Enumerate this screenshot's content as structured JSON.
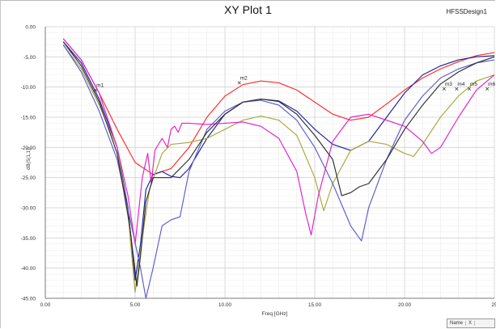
{
  "window": {
    "title": "XY Plot 1",
    "design_name": "HFSSDesign1",
    "legend_headers": [
      "Name",
      "X"
    ]
  },
  "chart_data": {
    "type": "line",
    "title": "XY Plot 1",
    "xlabel": "Freq [GHz]",
    "ylabel": "dB(S(1,1))",
    "xlim": [
      0,
      25
    ],
    "ylim": [
      -45,
      0
    ],
    "x_ticks": [
      0,
      5,
      10,
      15,
      20,
      25
    ],
    "x_tick_labels": [
      "0.00",
      "5.00",
      "10.00",
      "15.00",
      "20.00",
      "25"
    ],
    "y_ticks": [
      0,
      -5,
      -10,
      -15,
      -20,
      -25,
      -30,
      -35,
      -40,
      -45
    ],
    "y_tick_labels": [
      "0.00",
      "-5.00",
      "-10.00",
      "-15.00",
      "-20.00",
      "-25.00",
      "-30.00",
      "-35.00",
      "-40.00",
      "-45.00"
    ],
    "grid": true,
    "series": [
      {
        "color": "#ff2a2a",
        "points": [
          [
            1.0,
            -2.0
          ],
          [
            2.0,
            -5.5
          ],
          [
            3.0,
            -11.0
          ],
          [
            4.0,
            -17.0
          ],
          [
            5.0,
            -22.5
          ],
          [
            6.0,
            -24.5
          ],
          [
            7.0,
            -23.5
          ],
          [
            8.0,
            -20.0
          ],
          [
            9.0,
            -15.0
          ],
          [
            10.0,
            -11.5
          ],
          [
            11.0,
            -9.6
          ],
          [
            12.0,
            -9.0
          ],
          [
            13.0,
            -9.3
          ],
          [
            14.0,
            -10.5
          ],
          [
            15.0,
            -12.5
          ],
          [
            16.0,
            -14.5
          ],
          [
            17.0,
            -15.5
          ],
          [
            18.0,
            -15.0
          ],
          [
            19.0,
            -12.8
          ],
          [
            20.0,
            -10.5
          ],
          [
            21.0,
            -8.5
          ],
          [
            22.0,
            -7.0
          ],
          [
            23.0,
            -5.8
          ],
          [
            24.0,
            -4.8
          ],
          [
            25.0,
            -4.3
          ]
        ]
      },
      {
        "color": "#1f1f9f",
        "points": [
          [
            1.0,
            -2.5
          ],
          [
            2.0,
            -6.0
          ],
          [
            3.0,
            -12.0
          ],
          [
            4.0,
            -20.0
          ],
          [
            4.6,
            -30.0
          ],
          [
            5.0,
            -42.0
          ],
          [
            5.3,
            -36.0
          ],
          [
            5.6,
            -27.0
          ],
          [
            6.0,
            -24.5
          ],
          [
            6.5,
            -24.0
          ],
          [
            7.0,
            -24.8
          ],
          [
            7.5,
            -25.0
          ],
          [
            8.0,
            -23.5
          ],
          [
            9.0,
            -18.5
          ],
          [
            10.0,
            -14.5
          ],
          [
            11.0,
            -12.5
          ],
          [
            12.0,
            -12.0
          ],
          [
            13.0,
            -12.3
          ],
          [
            14.0,
            -14.0
          ],
          [
            15.0,
            -17.0
          ],
          [
            16.0,
            -19.5
          ],
          [
            17.0,
            -20.5
          ],
          [
            18.0,
            -19.0
          ],
          [
            19.0,
            -15.0
          ],
          [
            20.0,
            -11.0
          ],
          [
            21.0,
            -8.0
          ],
          [
            22.0,
            -6.5
          ],
          [
            23.0,
            -5.5
          ],
          [
            24.0,
            -5.0
          ],
          [
            25.0,
            -4.8
          ]
        ]
      },
      {
        "color": "#a8a83a",
        "points": [
          [
            1.0,
            -3.0
          ],
          [
            2.0,
            -7.0
          ],
          [
            3.0,
            -13.0
          ],
          [
            4.0,
            -20.0
          ],
          [
            4.6,
            -31.0
          ],
          [
            5.0,
            -44.0
          ],
          [
            5.4,
            -35.0
          ],
          [
            5.8,
            -27.0
          ],
          [
            6.5,
            -21.0
          ],
          [
            7.0,
            -19.5
          ],
          [
            8.0,
            -19.2
          ],
          [
            9.0,
            -18.5
          ],
          [
            10.0,
            -17.0
          ],
          [
            11.0,
            -15.5
          ],
          [
            12.0,
            -14.8
          ],
          [
            13.0,
            -15.5
          ],
          [
            14.0,
            -18.0
          ],
          [
            15.0,
            -25.0
          ],
          [
            15.5,
            -30.5
          ],
          [
            16.0,
            -26.0
          ],
          [
            17.0,
            -20.5
          ],
          [
            18.0,
            -19.0
          ],
          [
            19.0,
            -19.5
          ],
          [
            20.0,
            -21.0
          ],
          [
            20.5,
            -21.5
          ],
          [
            21.0,
            -19.5
          ],
          [
            22.0,
            -15.0
          ],
          [
            23.0,
            -11.5
          ],
          [
            24.0,
            -9.0
          ],
          [
            25.0,
            -8.0
          ]
        ]
      },
      {
        "color": "#5a5ad0",
        "points": [
          [
            1.0,
            -3.0
          ],
          [
            2.0,
            -7.5
          ],
          [
            3.0,
            -14.0
          ],
          [
            4.0,
            -22.0
          ],
          [
            4.8,
            -33.0
          ],
          [
            5.3,
            -40.0
          ],
          [
            5.6,
            -45.0
          ],
          [
            6.0,
            -40.0
          ],
          [
            6.5,
            -33.0
          ],
          [
            7.0,
            -32.0
          ],
          [
            7.5,
            -31.5
          ],
          [
            8.0,
            -24.0
          ],
          [
            9.0,
            -17.0
          ],
          [
            10.0,
            -14.0
          ],
          [
            11.0,
            -12.5
          ],
          [
            12.0,
            -12.2
          ],
          [
            13.0,
            -13.0
          ],
          [
            14.0,
            -15.5
          ],
          [
            15.0,
            -20.0
          ],
          [
            16.0,
            -26.0
          ],
          [
            17.0,
            -33.0
          ],
          [
            17.6,
            -35.5
          ],
          [
            18.0,
            -30.0
          ],
          [
            19.0,
            -22.0
          ],
          [
            20.0,
            -15.5
          ],
          [
            21.0,
            -11.5
          ],
          [
            22.0,
            -8.5
          ],
          [
            23.0,
            -7.0
          ],
          [
            24.0,
            -6.0
          ],
          [
            25.0,
            -5.5
          ]
        ]
      },
      {
        "color": "#e01fcf",
        "points": [
          [
            1.0,
            -2.0
          ],
          [
            2.0,
            -5.5
          ],
          [
            3.0,
            -11.0
          ],
          [
            4.0,
            -20.0
          ],
          [
            4.6,
            -28.0
          ],
          [
            5.0,
            -36.0
          ],
          [
            5.4,
            -25.0
          ],
          [
            5.7,
            -21.0
          ],
          [
            5.9,
            -26.0
          ],
          [
            6.1,
            -20.5
          ],
          [
            6.5,
            -18.5
          ],
          [
            6.8,
            -20.0
          ],
          [
            7.0,
            -17.0
          ],
          [
            7.2,
            -16.5
          ],
          [
            7.4,
            -17.5
          ],
          [
            7.6,
            -16.0
          ],
          [
            8.0,
            -16.0
          ],
          [
            9.0,
            -16.2
          ],
          [
            10.0,
            -16.0
          ],
          [
            11.0,
            -15.8
          ],
          [
            12.0,
            -16.5
          ],
          [
            13.0,
            -18.5
          ],
          [
            14.0,
            -24.0
          ],
          [
            14.5,
            -31.0
          ],
          [
            14.8,
            -34.5
          ],
          [
            15.2,
            -28.0
          ],
          [
            16.0,
            -19.0
          ],
          [
            17.0,
            -15.0
          ],
          [
            18.0,
            -14.5
          ],
          [
            19.0,
            -15.5
          ],
          [
            20.0,
            -16.5
          ],
          [
            21.0,
            -19.0
          ],
          [
            21.5,
            -21.0
          ],
          [
            22.0,
            -20.0
          ],
          [
            23.0,
            -15.0
          ],
          [
            24.0,
            -10.5
          ],
          [
            25.0,
            -8.0
          ]
        ]
      },
      {
        "color": "#2e2e2e",
        "points": [
          [
            1.0,
            -2.5
          ],
          [
            2.0,
            -6.5
          ],
          [
            3.0,
            -12.5
          ],
          [
            4.0,
            -21.0
          ],
          [
            4.7,
            -33.0
          ],
          [
            5.1,
            -43.0
          ],
          [
            5.3,
            -38.0
          ],
          [
            5.6,
            -29.0
          ],
          [
            6.0,
            -25.0
          ],
          [
            7.0,
            -25.0
          ],
          [
            8.0,
            -22.0
          ],
          [
            9.0,
            -17.5
          ],
          [
            10.0,
            -14.5
          ],
          [
            11.0,
            -12.5
          ],
          [
            12.0,
            -12.0
          ],
          [
            13.0,
            -12.4
          ],
          [
            14.0,
            -14.5
          ],
          [
            15.0,
            -18.0
          ],
          [
            16.0,
            -22.0
          ],
          [
            16.5,
            -28.0
          ],
          [
            17.0,
            -27.5
          ],
          [
            17.5,
            -26.5
          ],
          [
            18.0,
            -26.0
          ],
          [
            19.0,
            -22.0
          ],
          [
            20.0,
            -17.0
          ],
          [
            21.0,
            -13.0
          ],
          [
            22.0,
            -9.5
          ],
          [
            23.0,
            -7.5
          ],
          [
            24.0,
            -6.0
          ],
          [
            25.0,
            -5.0
          ]
        ]
      }
    ],
    "markers": [
      {
        "label": "m1",
        "x": 2.8,
        "y": -10.5
      },
      {
        "label": "m2",
        "x": 10.8,
        "y": -9.3
      },
      {
        "label": "m3",
        "x": 22.2,
        "y": -10.3
      },
      {
        "label": "m4",
        "x": 22.9,
        "y": -10.3
      },
      {
        "label": "m5",
        "x": 23.6,
        "y": -10.3
      },
      {
        "label": "m6",
        "x": 24.6,
        "y": -10.3
      }
    ]
  }
}
